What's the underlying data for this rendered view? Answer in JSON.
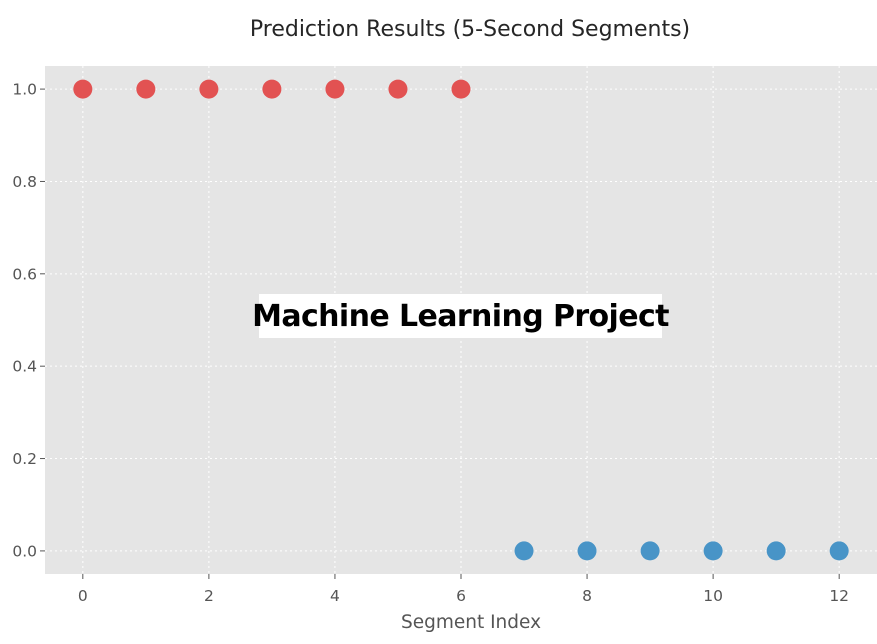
{
  "chart_data": {
    "type": "scatter",
    "title": "Prediction Results (5-Second Segments)",
    "xlabel": "Segment Index",
    "ylabel": "",
    "xlim": [
      -0.6,
      12.6
    ],
    "ylim": [
      -0.05,
      1.05
    ],
    "x_ticks": [
      0,
      2,
      4,
      6,
      8,
      10,
      12
    ],
    "y_ticks": [
      0.0,
      0.2,
      0.4,
      0.6,
      0.8,
      1.0
    ],
    "grid": true,
    "series": [
      {
        "color": "#e24a4a",
        "x": [
          0,
          1,
          2,
          3,
          4,
          5,
          6
        ],
        "y": [
          1.0,
          1.0,
          1.0,
          1.0,
          1.0,
          1.0,
          1.0
        ]
      },
      {
        "color": "#3f8fc5",
        "x": [
          7,
          8,
          9,
          10,
          11,
          12
        ],
        "y": [
          0.0,
          0.0,
          0.0,
          0.0,
          0.0,
          0.0
        ]
      }
    ]
  },
  "overlay": {
    "text": "Machine Learning Project"
  },
  "colors": {
    "plot_background": "#e5e5e5",
    "grid": "#ffffff",
    "tick_label": "#555555",
    "title": "#262626"
  }
}
